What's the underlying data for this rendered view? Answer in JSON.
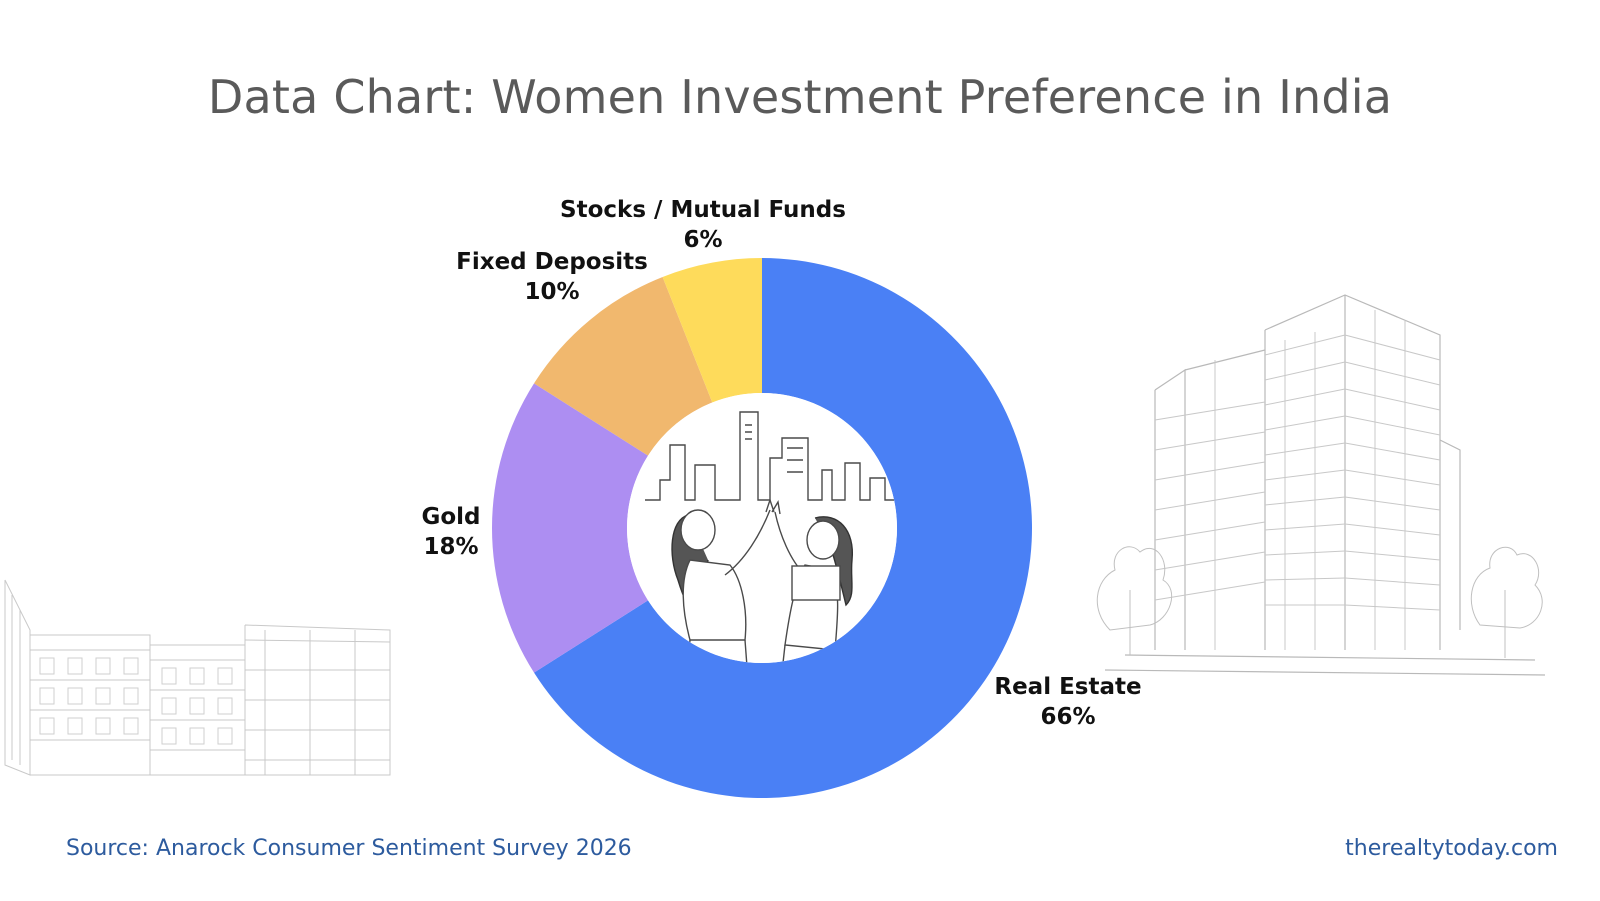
{
  "chart_data": {
    "type": "pie",
    "variant": "donut",
    "title": "Data Chart: Women Investment Preference in India",
    "categories": [
      "Real Estate",
      "Gold",
      "Fixed Deposits",
      "Stocks / Mutual Funds"
    ],
    "values": [
      66,
      18,
      10,
      6
    ],
    "value_labels": [
      "66%",
      "18%",
      "10%",
      "6%"
    ],
    "unit": "%",
    "colors": [
      "#4a80f5",
      "#ad8ef2",
      "#f1b86e",
      "#fedb5b"
    ],
    "legend": "none",
    "start_angle": "top",
    "direction": "clockwise"
  },
  "footer": {
    "source": "Source: Anarock Consumer Sentiment Survey 2026",
    "site": "therealtytoday.com"
  },
  "illustrations": {
    "center": "women-high-five-illustration",
    "left": "low-rise-buildings-sketch",
    "right": "apartment-tower-sketch"
  }
}
